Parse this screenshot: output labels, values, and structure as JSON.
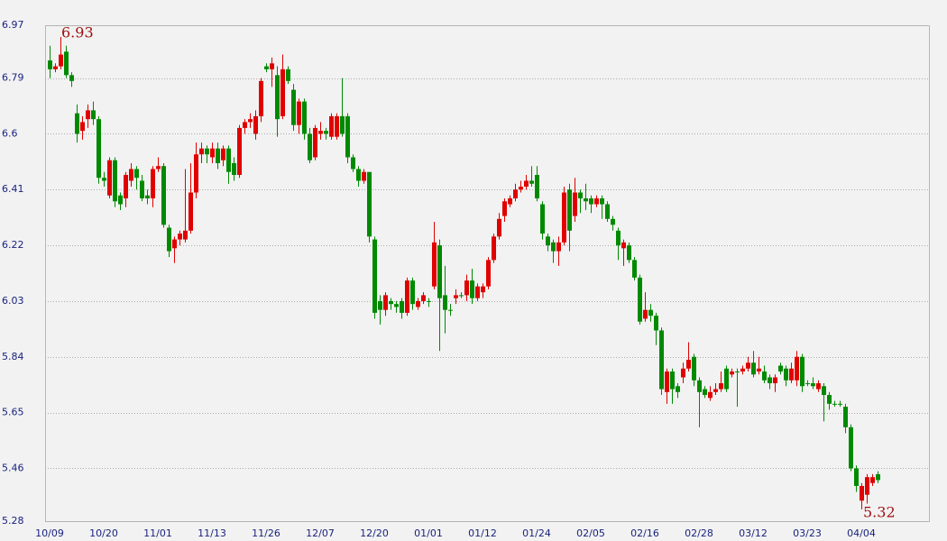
{
  "chart_data": {
    "type": "candlestick",
    "categories": [
      "10/09",
      null,
      null,
      null,
      null,
      null,
      null,
      null,
      null,
      null,
      "10/20",
      null,
      null,
      null,
      null,
      null,
      null,
      null,
      null,
      null,
      "11/01",
      null,
      null,
      null,
      null,
      null,
      null,
      null,
      null,
      null,
      "11/13",
      null,
      null,
      null,
      null,
      null,
      null,
      null,
      null,
      null,
      "11/26",
      null,
      null,
      null,
      null,
      null,
      null,
      null,
      null,
      null,
      "12/07",
      null,
      null,
      null,
      null,
      null,
      null,
      null,
      null,
      null,
      "12/20",
      null,
      null,
      null,
      null,
      null,
      null,
      null,
      null,
      null,
      "01/01",
      null,
      null,
      null,
      null,
      null,
      null,
      null,
      null,
      null,
      "01/12",
      null,
      null,
      null,
      null,
      null,
      null,
      null,
      null,
      null,
      "01/24",
      null,
      null,
      null,
      null,
      null,
      null,
      null,
      null,
      null,
      "02/05",
      null,
      null,
      null,
      null,
      null,
      null,
      null,
      null,
      null,
      "02/16",
      null,
      null,
      null,
      null,
      null,
      null,
      null,
      null,
      null,
      "02/28",
      null,
      null,
      null,
      null,
      null,
      null,
      null,
      null,
      null,
      "03/12",
      null,
      null,
      null,
      null,
      null,
      null,
      null,
      null,
      null,
      "03/23",
      null,
      null,
      null,
      null,
      null,
      null,
      null,
      null,
      null,
      "04/04",
      null,
      null,
      null
    ],
    "open": [
      6.85,
      6.82,
      6.83,
      6.88,
      6.8,
      6.67,
      6.61,
      6.65,
      6.68,
      6.65,
      6.45,
      6.39,
      6.51,
      6.39,
      6.38,
      6.44,
      6.48,
      6.44,
      6.39,
      6.38,
      6.48,
      6.49,
      6.28,
      6.21,
      6.24,
      6.24,
      6.27,
      6.4,
      6.53,
      6.55,
      6.52,
      6.55,
      6.51,
      6.55,
      6.5,
      6.46,
      6.62,
      6.64,
      6.6,
      6.66,
      6.83,
      6.82,
      6.8,
      6.66,
      6.82,
      6.75,
      6.63,
      6.71,
      6.6,
      6.52,
      6.6,
      6.61,
      6.59,
      6.59,
      6.66,
      6.66,
      6.52,
      6.48,
      6.44,
      6.47,
      6.24,
      6.03,
      6.0,
      6.03,
      6.02,
      6.03,
      5.99,
      6.1,
      6.01,
      6.03,
      6.03,
      6.08,
      6.22,
      6.05,
      6.0,
      6.04,
      6.05,
      6.05,
      6.1,
      6.04,
      6.06,
      6.08,
      6.17,
      6.25,
      6.32,
      6.36,
      6.38,
      6.41,
      6.42,
      6.44,
      6.46,
      6.36,
      6.25,
      6.23,
      6.2,
      6.23,
      6.41,
      6.32,
      6.4,
      6.38,
      6.38,
      6.36,
      6.38,
      6.36,
      6.31,
      6.27,
      6.21,
      6.22,
      6.17,
      6.11,
      5.97,
      6.0,
      5.98,
      5.93,
      5.72,
      5.79,
      5.74,
      5.77,
      5.8,
      5.84,
      5.76,
      5.73,
      5.7,
      5.72,
      5.73,
      5.8,
      5.78,
      5.79,
      5.79,
      5.8,
      5.82,
      5.79,
      5.79,
      5.77,
      5.75,
      5.81,
      5.8,
      5.76,
      5.76,
      5.84,
      5.75,
      5.75,
      5.73,
      5.74,
      5.71,
      5.68,
      5.68,
      5.67,
      5.6,
      5.46,
      5.35,
      5.37,
      5.41,
      5.44
    ],
    "high": [
      6.9,
      6.84,
      6.93,
      6.9,
      6.81,
      6.7,
      6.66,
      6.7,
      6.71,
      6.66,
      6.47,
      6.52,
      6.52,
      6.4,
      6.47,
      6.5,
      6.49,
      6.46,
      6.41,
      6.49,
      6.52,
      6.5,
      6.29,
      6.25,
      6.27,
      6.48,
      6.5,
      6.57,
      6.57,
      6.56,
      6.57,
      6.57,
      6.56,
      6.56,
      6.52,
      6.63,
      6.65,
      6.67,
      6.68,
      6.79,
      6.84,
      6.86,
      6.83,
      6.87,
      6.83,
      6.77,
      6.72,
      6.72,
      6.62,
      6.63,
      6.64,
      6.62,
      6.67,
      6.67,
      6.79,
      6.67,
      6.53,
      6.49,
      6.48,
      6.47,
      6.25,
      6.05,
      6.06,
      6.04,
      6.03,
      6.04,
      6.11,
      6.11,
      6.04,
      6.06,
      6.04,
      6.3,
      6.24,
      6.15,
      6.02,
      6.07,
      6.06,
      6.12,
      6.14,
      6.09,
      6.09,
      6.18,
      6.26,
      6.33,
      6.38,
      6.39,
      6.43,
      6.44,
      6.46,
      6.49,
      6.49,
      6.37,
      6.26,
      6.24,
      6.25,
      6.42,
      6.43,
      6.45,
      6.41,
      6.43,
      6.39,
      6.39,
      6.39,
      6.37,
      6.32,
      6.28,
      6.24,
      6.23,
      6.18,
      6.12,
      6.06,
      6.02,
      5.99,
      5.94,
      5.8,
      5.8,
      5.75,
      5.82,
      5.89,
      5.85,
      5.77,
      5.74,
      5.74,
      5.75,
      5.79,
      5.81,
      5.8,
      5.8,
      5.81,
      5.84,
      5.86,
      5.84,
      5.81,
      5.78,
      5.78,
      5.82,
      5.81,
      5.82,
      5.86,
      5.85,
      5.76,
      5.77,
      5.76,
      5.75,
      5.72,
      5.69,
      5.69,
      5.68,
      5.61,
      5.47,
      5.41,
      5.44,
      5.44,
      5.45
    ],
    "low": [
      6.79,
      6.81,
      6.82,
      6.79,
      6.76,
      6.57,
      6.58,
      6.62,
      6.63,
      6.43,
      6.42,
      6.38,
      6.35,
      6.34,
      6.35,
      6.42,
      6.41,
      6.37,
      6.36,
      6.35,
      6.47,
      6.28,
      6.18,
      6.16,
      6.22,
      6.23,
      6.26,
      6.38,
      6.5,
      6.5,
      6.5,
      6.48,
      6.49,
      6.43,
      6.44,
      6.45,
      6.6,
      6.62,
      6.58,
      6.64,
      6.81,
      6.76,
      6.59,
      6.65,
      6.77,
      6.61,
      6.6,
      6.58,
      6.5,
      6.51,
      6.58,
      6.58,
      6.58,
      6.58,
      6.59,
      6.5,
      6.47,
      6.42,
      6.43,
      6.23,
      5.97,
      5.95,
      5.98,
      6.0,
      5.99,
      5.97,
      5.98,
      6.0,
      6.0,
      6.02,
      6.01,
      6.07,
      5.86,
      5.92,
      5.98,
      6.02,
      6.04,
      6.03,
      6.02,
      6.03,
      6.04,
      6.07,
      6.16,
      6.24,
      6.3,
      6.35,
      6.37,
      6.4,
      6.41,
      6.42,
      6.37,
      6.24,
      6.2,
      6.16,
      6.15,
      6.22,
      6.2,
      6.3,
      6.33,
      6.34,
      6.33,
      6.35,
      6.31,
      6.3,
      6.27,
      6.17,
      6.15,
      6.16,
      6.1,
      5.95,
      5.96,
      5.96,
      5.88,
      5.71,
      5.68,
      5.68,
      5.7,
      5.75,
      5.79,
      5.74,
      5.6,
      5.7,
      5.69,
      5.71,
      5.72,
      5.72,
      5.77,
      5.67,
      5.78,
      5.79,
      5.77,
      5.78,
      5.75,
      5.73,
      5.72,
      5.78,
      5.74,
      5.75,
      5.74,
      5.72,
      5.74,
      5.73,
      5.72,
      5.62,
      5.66,
      5.67,
      5.67,
      5.58,
      5.45,
      5.38,
      5.32,
      5.34,
      5.4,
      5.41
    ],
    "close": [
      6.82,
      6.83,
      6.87,
      6.8,
      6.78,
      6.6,
      6.64,
      6.68,
      6.65,
      6.45,
      6.44,
      6.51,
      6.37,
      6.36,
      6.46,
      6.48,
      6.45,
      6.38,
      6.38,
      6.48,
      6.49,
      6.29,
      6.2,
      6.24,
      6.26,
      6.27,
      6.4,
      6.53,
      6.55,
      6.53,
      6.55,
      6.5,
      6.55,
      6.47,
      6.46,
      6.62,
      6.64,
      6.65,
      6.66,
      6.78,
      6.82,
      6.84,
      6.65,
      6.82,
      6.78,
      6.63,
      6.71,
      6.6,
      6.51,
      6.62,
      6.61,
      6.6,
      6.66,
      6.66,
      6.6,
      6.52,
      6.48,
      6.44,
      6.47,
      6.25,
      5.99,
      6.0,
      6.05,
      6.02,
      6.01,
      5.99,
      6.1,
      6.02,
      6.03,
      6.05,
      6.03,
      6.23,
      6.04,
      6.0,
      6.0,
      6.05,
      6.05,
      6.1,
      6.04,
      6.08,
      6.08,
      6.17,
      6.25,
      6.31,
      6.37,
      6.38,
      6.41,
      6.42,
      6.44,
      6.43,
      6.38,
      6.26,
      6.22,
      6.2,
      6.23,
      6.4,
      6.27,
      6.4,
      6.38,
      6.37,
      6.36,
      6.38,
      6.36,
      6.31,
      6.29,
      6.22,
      6.23,
      6.17,
      6.11,
      5.96,
      6.0,
      5.98,
      5.93,
      5.73,
      5.79,
      5.73,
      5.72,
      5.8,
      5.83,
      5.76,
      5.72,
      5.71,
      5.72,
      5.73,
      5.75,
      5.73,
      5.79,
      5.79,
      5.8,
      5.82,
      5.78,
      5.8,
      5.76,
      5.75,
      5.77,
      5.79,
      5.76,
      5.8,
      5.84,
      5.74,
      5.75,
      5.74,
      5.75,
      5.71,
      5.68,
      5.68,
      5.68,
      5.6,
      5.46,
      5.4,
      5.4,
      5.43,
      5.43,
      5.42
    ],
    "up_color": "#e00000",
    "down_color": "#008a00",
    "high_annotation": 6.93,
    "low_annotation": 5.32,
    "ylim": [
      5.28,
      6.97
    ],
    "yticks": [
      5.28,
      5.46,
      5.65,
      5.84,
      6.03,
      6.22,
      6.41,
      6.6,
      6.79,
      6.97
    ],
    "grid": true
  }
}
